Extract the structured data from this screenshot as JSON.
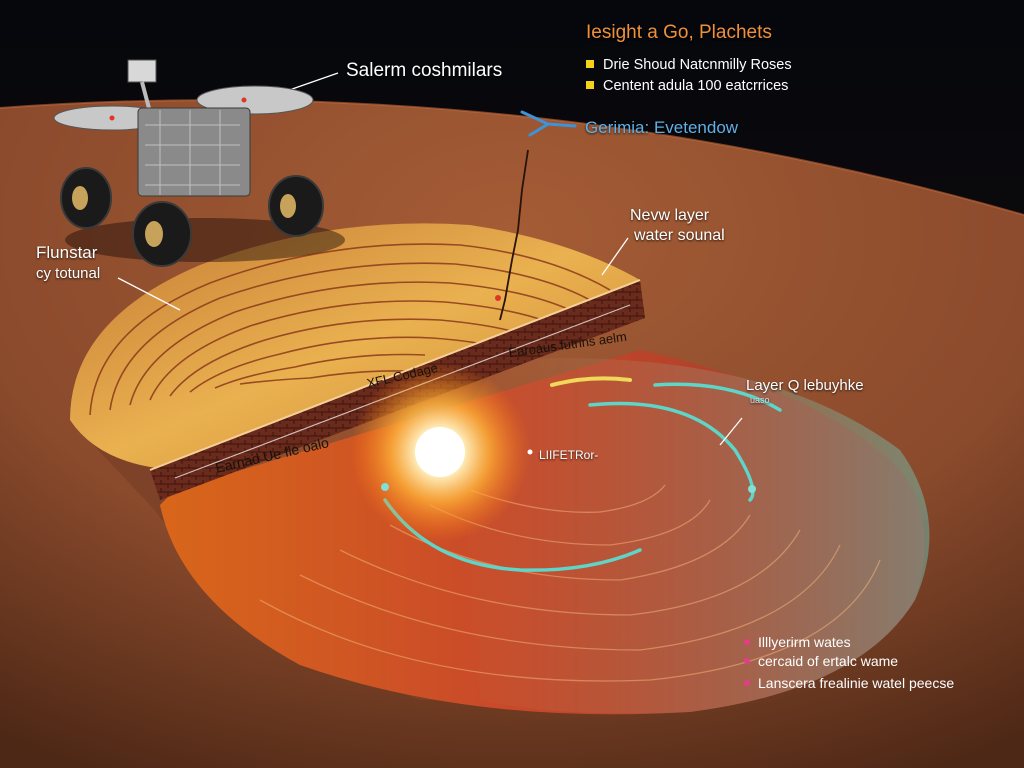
{
  "legend": {
    "title": "Iesight a Go, Plachets",
    "items": [
      {
        "text": "Drie Shoud Natcnmilly Roses",
        "color": "#f2d21a"
      },
      {
        "text": "Centent adula 100 eatcrrices",
        "color": "#f2d21a"
      }
    ]
  },
  "labels": {
    "rover": "Salerm coshmilars",
    "germinia": "Gerimia: Evetendow",
    "new_layer_line1": "Nevw layer",
    "new_layer_line2": "water sounal",
    "flunstar_line1": "Flunstar",
    "flunstar_line2": "cy totunal",
    "edge_right": "Earoaus futrins aelm",
    "edge_mid": "XFL Codage",
    "edge_left": "Earnad Ue fle oalo",
    "layer_line1": "Layer Q lebuyhke",
    "layer_line2": "uaso",
    "sun_point": "LIIFETRor-"
  },
  "bottom_notes": [
    {
      "text": "Illlyerirm wates",
      "color": "#e83a8a"
    },
    {
      "text": "cercaid of ertalc wame",
      "color": "#e83a8a"
    },
    {
      "text": "Lanscera frealinie watel peecse",
      "color": "#e83a8a"
    }
  ],
  "colors": {
    "sky": "#05070c",
    "mars_ground": "#8a4a2c",
    "dome_top": "#e9a544",
    "contour": "#8b3a1a",
    "ice_ring": "#5fd4c8",
    "sun": "#fff4c8",
    "accent_blue": "#3d93d8"
  }
}
